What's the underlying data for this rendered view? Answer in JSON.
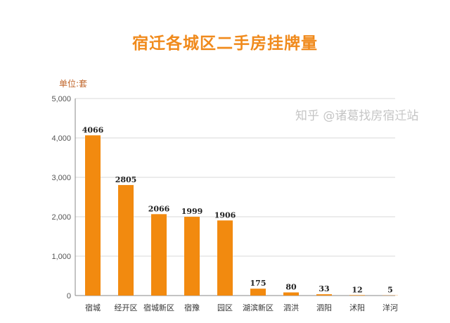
{
  "chart_data": {
    "type": "bar",
    "title": "宿迁各城区二手房挂牌量",
    "ylabel": "单位:套",
    "xlabel": "",
    "categories": [
      "宿城",
      "经开区",
      "宿城新区",
      "宿豫",
      "园区",
      "湖滨新区",
      "泗洪",
      "泗阳",
      "沭阳",
      "洋河"
    ],
    "values": [
      4066,
      2805,
      2066,
      1999,
      1906,
      175,
      80,
      33,
      12,
      5
    ],
    "ylim": [
      0,
      5000
    ],
    "yticks": [
      0,
      1000,
      2000,
      3000,
      4000,
      5000
    ],
    "ytick_labels": [
      "0",
      "1,000",
      "2,000",
      "3,000",
      "4,000",
      "5,000"
    ],
    "grid": true,
    "bar_color": "#f28a0f"
  },
  "watermark": "知乎 @诸葛找房宿迁站"
}
